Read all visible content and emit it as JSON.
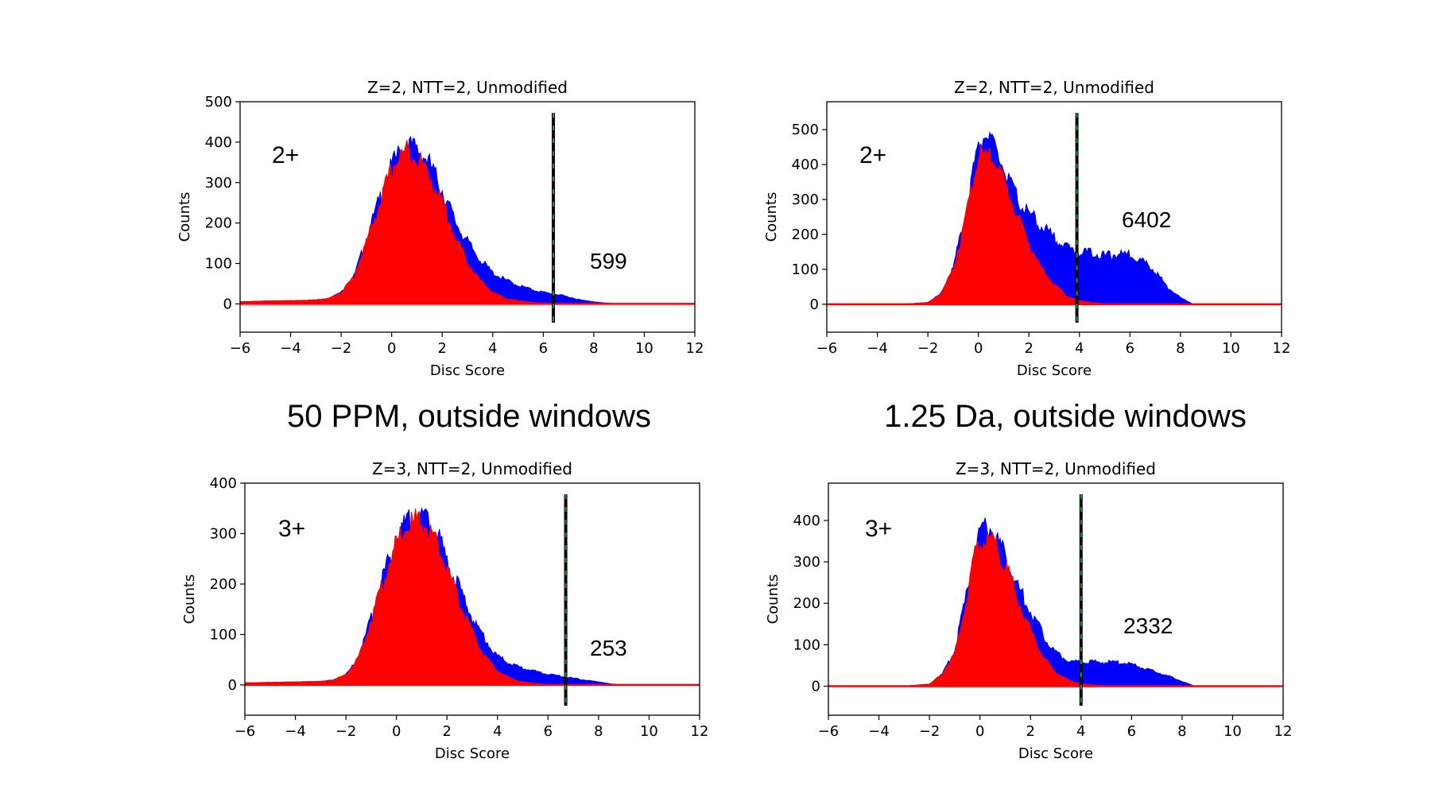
{
  "captions": {
    "left": "50 PPM, outside windows",
    "right": "1.25 Da, outside windows"
  },
  "colors": {
    "target": "#0000ff",
    "decoy": "#ff0000",
    "threshold_dash": "#000000",
    "threshold_dash_alt": "#1f9a2e"
  },
  "chart_data": [
    {
      "type": "area",
      "title": "Z=2, NTT=2, Unmodified",
      "xlabel": "Disc Score",
      "ylabel": "Counts",
      "xlim": [
        -6,
        12
      ],
      "ylim": [
        -70,
        500
      ],
      "xticks": [
        -6,
        -4,
        -2,
        0,
        2,
        4,
        6,
        8,
        10,
        12
      ],
      "yticks": [
        0,
        100,
        200,
        300,
        400,
        500
      ],
      "charge_label": "2+",
      "count_label": "599",
      "threshold": 6.4,
      "series": [
        {
          "color": "blue",
          "x": [
            -6,
            -5,
            -4,
            -3,
            -2.5,
            -2,
            -1.5,
            -1,
            -0.5,
            0,
            0.3,
            0.6,
            0.9,
            1.2,
            1.5,
            2,
            2.5,
            3,
            3.5,
            4,
            4.5,
            5,
            5.5,
            6,
            6.5,
            7,
            7.5,
            8,
            8.5,
            9,
            10,
            12
          ],
          "y": [
            5,
            7,
            8,
            10,
            14,
            30,
            70,
            165,
            265,
            355,
            390,
            410,
            400,
            385,
            360,
            295,
            215,
            160,
            115,
            80,
            62,
            48,
            38,
            30,
            25,
            18,
            10,
            5,
            2,
            0,
            0,
            0
          ]
        },
        {
          "color": "red",
          "x": [
            -6,
            -5,
            -4,
            -3,
            -2.5,
            -2,
            -1.5,
            -1,
            -0.5,
            0,
            0.3,
            0.6,
            0.9,
            1.2,
            1.5,
            2,
            2.5,
            3,
            3.5,
            4,
            4.5,
            5,
            5.5,
            6,
            6.5,
            7,
            8,
            12
          ],
          "y": [
            5,
            7,
            8,
            10,
            14,
            30,
            70,
            160,
            255,
            345,
            375,
            395,
            380,
            360,
            330,
            265,
            175,
            110,
            60,
            30,
            15,
            8,
            4,
            2,
            1,
            0,
            0,
            0
          ]
        }
      ]
    },
    {
      "type": "area",
      "title": "Z=2, NTT=2, Unmodified",
      "xlabel": "Disc Score",
      "ylabel": "Counts",
      "xlim": [
        -6,
        12
      ],
      "ylim": [
        -80,
        580
      ],
      "xticks": [
        -6,
        -4,
        -2,
        0,
        2,
        4,
        6,
        8,
        10,
        12
      ],
      "yticks": [
        0,
        100,
        200,
        300,
        400,
        500
      ],
      "charge_label": "2+",
      "count_label": "6402",
      "threshold": 3.9,
      "series": [
        {
          "color": "blue",
          "x": [
            -6,
            -3,
            -2,
            -1.5,
            -1,
            -0.5,
            -0.2,
            0,
            0.3,
            0.6,
            1,
            1.5,
            2,
            2.5,
            3,
            3.5,
            4,
            4.5,
            5,
            5.5,
            6,
            6.5,
            7,
            7.5,
            8,
            8.5,
            12
          ],
          "y": [
            0,
            0,
            5,
            30,
            110,
            270,
            400,
            470,
            500,
            470,
            400,
            320,
            270,
            235,
            200,
            170,
            155,
            155,
            145,
            150,
            150,
            130,
            100,
            50,
            20,
            0,
            0
          ]
        },
        {
          "color": "red",
          "x": [
            -6,
            -3,
            -2,
            -1.5,
            -1,
            -0.5,
            -0.2,
            0,
            0.3,
            0.6,
            1,
            1.5,
            2,
            2.5,
            3,
            3.5,
            4,
            4.5,
            5,
            6,
            12
          ],
          "y": [
            0,
            0,
            5,
            30,
            105,
            255,
            370,
            440,
            445,
            430,
            370,
            275,
            185,
            105,
            60,
            25,
            10,
            5,
            2,
            0,
            0
          ]
        }
      ]
    },
    {
      "type": "area",
      "title": "Z=3, NTT=2, Unmodified",
      "xlabel": "Disc Score",
      "ylabel": "Counts",
      "xlim": [
        -6,
        12
      ],
      "ylim": [
        -60,
        400
      ],
      "xticks": [
        -6,
        -4,
        -2,
        0,
        2,
        4,
        6,
        8,
        10,
        12
      ],
      "yticks": [
        0,
        100,
        200,
        300,
        400
      ],
      "charge_label": "3+",
      "count_label": "253",
      "threshold": 6.7,
      "series": [
        {
          "color": "blue",
          "x": [
            -6,
            -5,
            -4,
            -3,
            -2.5,
            -2,
            -1.5,
            -1,
            -0.5,
            0,
            0.3,
            0.6,
            0.9,
            1.2,
            1.5,
            2,
            2.5,
            3,
            3.5,
            4,
            4.5,
            5,
            5.5,
            6,
            6.5,
            7,
            7.5,
            8,
            8.5,
            9,
            12
          ],
          "y": [
            4,
            5,
            6,
            7,
            10,
            22,
            55,
            140,
            230,
            300,
            330,
            345,
            350,
            340,
            320,
            260,
            200,
            140,
            95,
            60,
            45,
            35,
            28,
            22,
            18,
            14,
            10,
            6,
            2,
            0,
            0
          ]
        },
        {
          "color": "red",
          "x": [
            -6,
            -5,
            -4,
            -3,
            -2.5,
            -2,
            -1.5,
            -1,
            -0.5,
            0,
            0.3,
            0.6,
            0.9,
            1.2,
            1.5,
            2,
            2.5,
            3,
            3.5,
            4,
            4.5,
            5,
            5.5,
            6,
            7,
            12
          ],
          "y": [
            4,
            5,
            6,
            7,
            10,
            22,
            55,
            135,
            220,
            290,
            320,
            335,
            340,
            325,
            300,
            245,
            170,
            110,
            60,
            30,
            14,
            6,
            3,
            1,
            0,
            0
          ]
        }
      ]
    },
    {
      "type": "area",
      "title": "Z=3, NTT=2, Unmodified",
      "xlabel": "Disc Score",
      "ylabel": "Counts",
      "xlim": [
        -6,
        12
      ],
      "ylim": [
        -70,
        490
      ],
      "xticks": [
        -6,
        -4,
        -2,
        0,
        2,
        4,
        6,
        8,
        10,
        12
      ],
      "yticks": [
        0,
        100,
        200,
        300,
        400
      ],
      "charge_label": "3+",
      "count_label": "2332",
      "threshold": 4.0,
      "series": [
        {
          "color": "blue",
          "x": [
            -6,
            -3,
            -2,
            -1.5,
            -1,
            -0.5,
            -0.2,
            0,
            0.3,
            0.6,
            1,
            1.5,
            2,
            2.5,
            3,
            3.5,
            4,
            4.5,
            5,
            5.5,
            6,
            6.5,
            7,
            7.5,
            8,
            8.5,
            12
          ],
          "y": [
            0,
            0,
            5,
            30,
            90,
            240,
            350,
            385,
            400,
            380,
            330,
            250,
            190,
            130,
            85,
            65,
            60,
            62,
            60,
            60,
            55,
            45,
            35,
            25,
            12,
            0,
            0
          ]
        },
        {
          "color": "red",
          "x": [
            -6,
            -3,
            -2,
            -1.5,
            -1,
            -0.5,
            -0.2,
            0,
            0.3,
            0.6,
            1,
            1.5,
            2,
            2.5,
            3,
            3.5,
            4,
            4.5,
            5,
            6,
            12
          ],
          "y": [
            0,
            0,
            5,
            30,
            85,
            225,
            330,
            365,
            370,
            355,
            305,
            220,
            140,
            75,
            35,
            15,
            6,
            3,
            1,
            0,
            0
          ]
        }
      ]
    }
  ]
}
